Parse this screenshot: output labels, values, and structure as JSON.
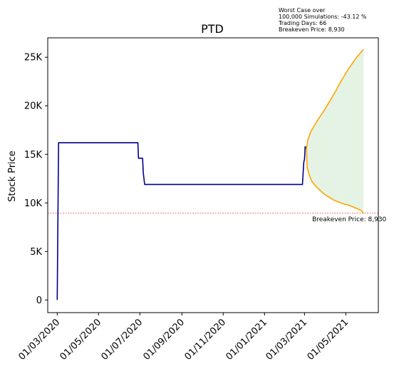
{
  "chart_data": {
    "type": "line",
    "title": "PTD",
    "ylabel": "Stock Price",
    "xlabel": "",
    "ylim": [
      -1300,
      27000
    ],
    "y_ticks": [
      0,
      5000,
      10000,
      15000,
      20000,
      25000
    ],
    "y_tick_labels": [
      "0",
      "5K",
      "10K",
      "15K",
      "20K",
      "25K"
    ],
    "x_ticks": [
      "2020-03-01",
      "2020-05-01",
      "2020-07-01",
      "2020-09-01",
      "2020-11-01",
      "2021-01-01",
      "2021-03-01",
      "2021-05-01"
    ],
    "x_tick_labels": [
      "01/03/2020",
      "01/05/2020",
      "01/07/2020",
      "01/09/2020",
      "01/11/2020",
      "01/01/2021",
      "01/03/2021",
      "01/05/2021"
    ],
    "xlim": [
      "2020-02-16",
      "2021-06-18"
    ],
    "annotation_lines": [
      "Worst Case over",
      "100,000 Simulations: -43.12 %",
      "Trading Days: 66",
      "Breakeven Price: 8,930"
    ],
    "breakeven": {
      "value": 8930,
      "label": "Breakeven Price: 8,930",
      "color": "#d62728"
    },
    "series": [
      {
        "role": "historical",
        "color": "#00008b",
        "points": [
          [
            "2020-03-01",
            0
          ],
          [
            "2020-03-03",
            16200
          ],
          [
            "2020-06-28",
            16200
          ],
          [
            "2020-06-29",
            14600
          ],
          [
            "2020-07-05",
            14600
          ],
          [
            "2020-07-06",
            13100
          ],
          [
            "2020-07-08",
            11900
          ],
          [
            "2021-02-26",
            11900
          ],
          [
            "2021-02-28",
            14200
          ],
          [
            "2021-03-01",
            14500
          ],
          [
            "2021-03-02",
            15800
          ],
          [
            "2021-03-04",
            15600
          ]
        ]
      },
      {
        "role": "best-case",
        "color": "#ffa500",
        "points": [
          [
            "2021-03-04",
            15600
          ],
          [
            "2021-03-06",
            16500
          ],
          [
            "2021-03-10",
            17300
          ],
          [
            "2021-03-16",
            18000
          ],
          [
            "2021-03-22",
            18700
          ],
          [
            "2021-03-28",
            19300
          ],
          [
            "2021-04-04",
            20100
          ],
          [
            "2021-04-10",
            20800
          ],
          [
            "2021-04-16",
            21500
          ],
          [
            "2021-04-22",
            22300
          ],
          [
            "2021-04-28",
            23000
          ],
          [
            "2021-05-04",
            23700
          ],
          [
            "2021-05-10",
            24300
          ],
          [
            "2021-05-16",
            24900
          ],
          [
            "2021-05-22",
            25400
          ],
          [
            "2021-05-27",
            25800
          ]
        ]
      },
      {
        "role": "worst-case",
        "color": "#ffa500",
        "points": [
          [
            "2021-03-04",
            15600
          ],
          [
            "2021-03-05",
            13600
          ],
          [
            "2021-03-08",
            12900
          ],
          [
            "2021-03-12",
            12200
          ],
          [
            "2021-03-18",
            11700
          ],
          [
            "2021-03-24",
            11300
          ],
          [
            "2021-03-30",
            10900
          ],
          [
            "2021-04-06",
            10600
          ],
          [
            "2021-04-13",
            10300
          ],
          [
            "2021-04-20",
            10100
          ],
          [
            "2021-04-27",
            9900
          ],
          [
            "2021-05-04",
            9800
          ],
          [
            "2021-05-11",
            9600
          ],
          [
            "2021-05-18",
            9400
          ],
          [
            "2021-05-24",
            9200
          ],
          [
            "2021-05-27",
            8930
          ]
        ]
      }
    ],
    "band_fill_color": "#2ca02c",
    "grid": false,
    "legend": "none"
  }
}
